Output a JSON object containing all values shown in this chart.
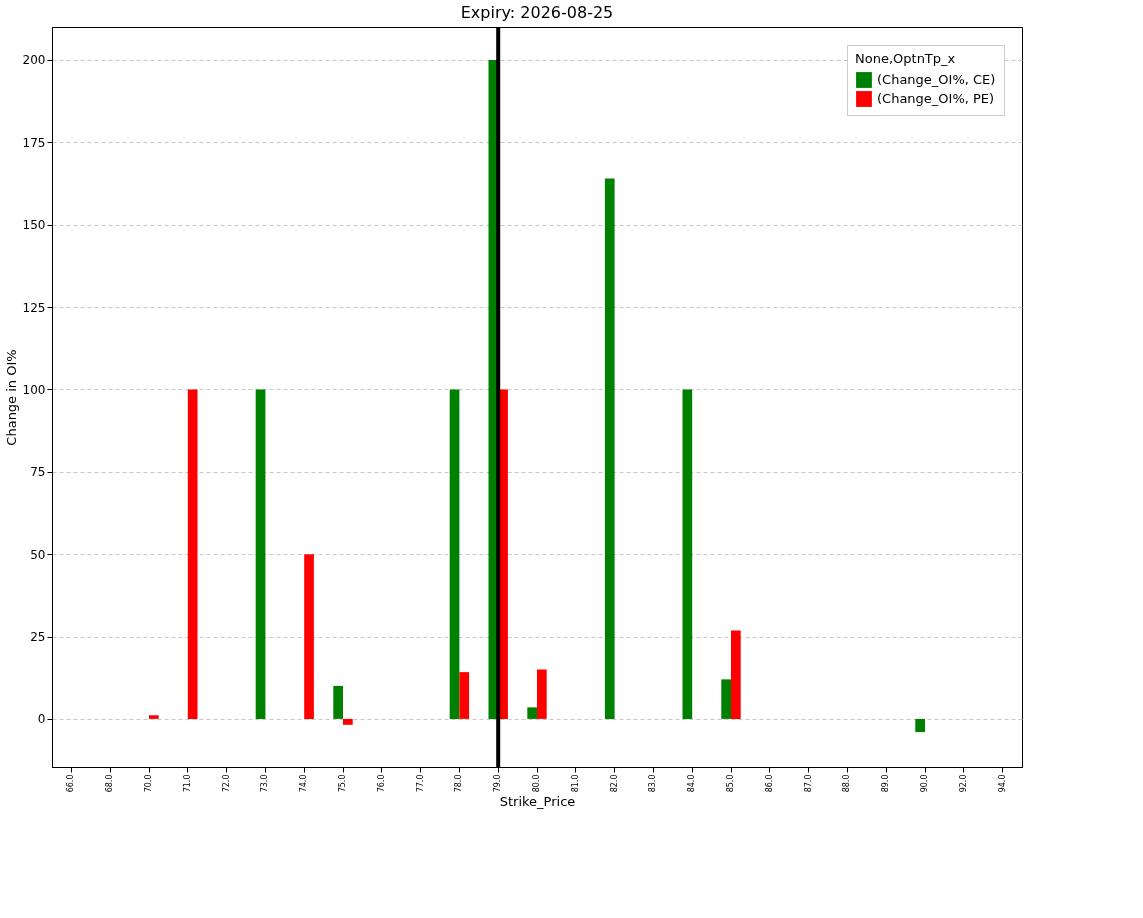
{
  "chart_data": {
    "type": "bar",
    "title": "Expiry: 2026-08-25",
    "xlabel": "Strike_Price",
    "ylabel": "Change in OI%",
    "legend_title": "None,OptnTp_x",
    "categories": [
      "66.0",
      "68.0",
      "70.0",
      "71.0",
      "72.0",
      "73.0",
      "74.0",
      "75.0",
      "76.0",
      "77.0",
      "78.0",
      "79.0",
      "80.0",
      "81.0",
      "82.0",
      "83.0",
      "84.0",
      "85.0",
      "86.0",
      "87.0",
      "88.0",
      "89.0",
      "90.0",
      "92.0",
      "94.0"
    ],
    "series": [
      {
        "name": "(Change_OI%, CE)",
        "color": "#008000",
        "values": [
          null,
          null,
          null,
          null,
          null,
          100,
          null,
          10,
          null,
          null,
          100,
          200,
          3.5,
          null,
          164,
          null,
          100,
          12,
          null,
          null,
          null,
          null,
          -4,
          null,
          null
        ]
      },
      {
        "name": "(Change_OI%, PE)",
        "color": "#ff0000",
        "values": [
          null,
          null,
          1.1,
          100,
          null,
          null,
          50,
          -1.8,
          null,
          null,
          14.2,
          100,
          15,
          null,
          null,
          null,
          null,
          26.8,
          null,
          null,
          null,
          null,
          null,
          null,
          null
        ]
      }
    ],
    "ylim": [
      -14.6,
      210
    ],
    "yticks": [
      0,
      25,
      50,
      75,
      100,
      125,
      150,
      175,
      200
    ],
    "ref_lines": [
      {
        "axis": "x",
        "value": "79.0",
        "color": "#000000"
      }
    ],
    "grid": "y",
    "legend": "top right"
  }
}
